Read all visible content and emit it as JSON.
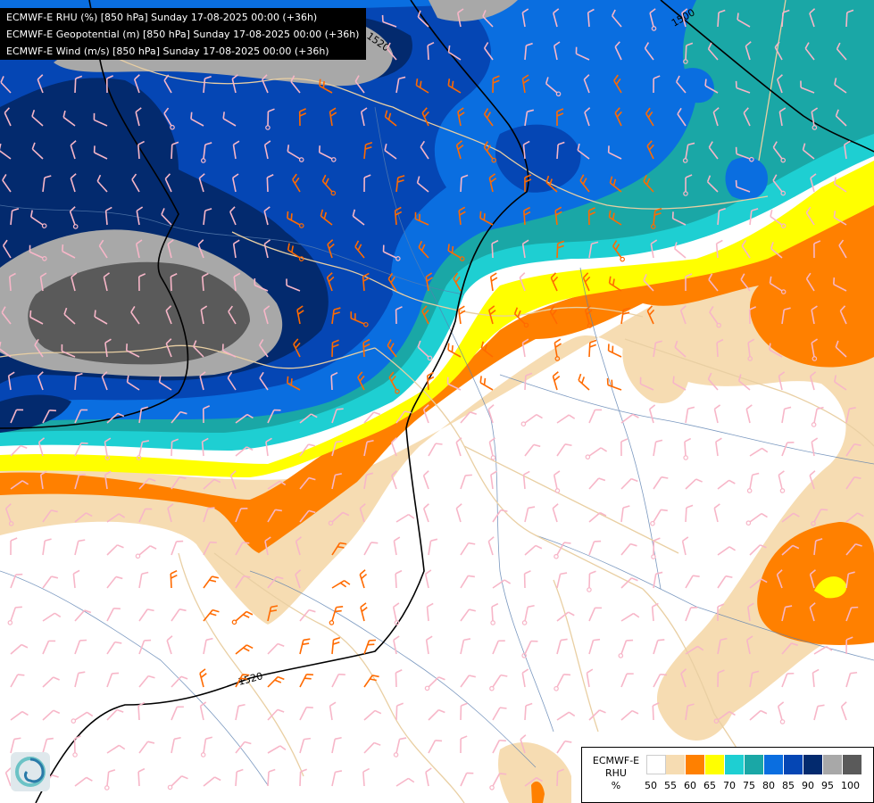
{
  "header": {
    "lines": [
      "ECMWF-E RHU (%) [850 hPa] Sunday 17-08-2025 00:00 (+36h)",
      "ECMWF-E Geopotential (m) [850 hPa] Sunday 17-08-2025 00:00 (+36h)",
      "ECMWF-E Wind (m/s) [850 hPa] Sunday 17-08-2025 00:00 (+36h)"
    ]
  },
  "contours": {
    "labels": [
      "1520",
      "1500",
      "1520"
    ]
  },
  "legend": {
    "title_lines": [
      "ECMWF-E",
      "RHU",
      "%"
    ],
    "levels": [
      {
        "label": "50",
        "color": "#ffffff"
      },
      {
        "label": "55",
        "color": "#f6dcb2"
      },
      {
        "label": "60",
        "color": "#ff8000"
      },
      {
        "label": "65",
        "color": "#ffff00"
      },
      {
        "label": "70",
        "color": "#1ecfd2"
      },
      {
        "label": "75",
        "color": "#1aa7a6"
      },
      {
        "label": "80",
        "color": "#0a6ee0"
      },
      {
        "label": "85",
        "color": "#0546b4"
      },
      {
        "label": "90",
        "color": "#032a6e"
      },
      {
        "label": "95",
        "color": "#a8a8a8"
      },
      {
        "label": "100",
        "color": "#5a5a5a"
      }
    ]
  },
  "logo": {
    "icon": "ecmwf-swirl-icon",
    "colors": [
      "#6cc3c6",
      "#2a7aa8"
    ]
  }
}
